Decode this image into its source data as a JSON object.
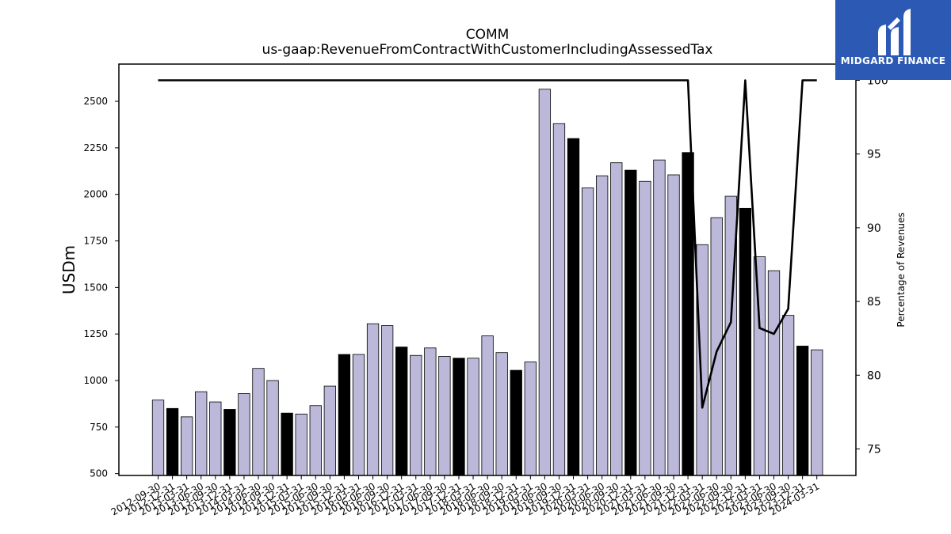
{
  "chart_data": {
    "type": "bar",
    "title": "COMM",
    "subtitle": "us-gaap:RevenueFromContractWithCustomerIncludingAssessedTax",
    "ylabel": "USDm",
    "y2label": "Percentage of Revenues",
    "ylim": [
      490,
      2700
    ],
    "y2lim": [
      73.2,
      101.1
    ],
    "yticks": [
      500,
      750,
      1000,
      1250,
      1500,
      1750,
      2000,
      2250,
      2500
    ],
    "y2ticks": [
      75,
      80,
      85,
      90,
      95,
      100
    ],
    "categories": [
      "2012-09-30",
      "2012-12-31",
      "2013-03-31",
      "2013-06-30",
      "2013-09-30",
      "2013-12-31",
      "2014-03-31",
      "2014-06-30",
      "2014-09-30",
      "2014-12-31",
      "2015-03-31",
      "2015-06-30",
      "2015-09-30",
      "2015-12-31",
      "2016-03-31",
      "2016-06-30",
      "2016-09-30",
      "2016-12-31",
      "2017-03-31",
      "2017-06-30",
      "2017-09-30",
      "2017-12-31",
      "2018-03-31",
      "2018-06-30",
      "2018-09-30",
      "2018-12-31",
      "2019-03-31",
      "2019-06-30",
      "2019-09-30",
      "2019-12-31",
      "2020-03-31",
      "2020-06-30",
      "2020-09-30",
      "2020-12-31",
      "2021-03-31",
      "2021-06-30",
      "2021-09-30",
      "2021-12-31",
      "2022-03-31",
      "2022-06-30",
      "2022-09-30",
      "2022-12-31",
      "2023-03-31",
      "2023-06-30",
      "2023-09-30",
      "2023-12-31",
      "2024-03-31"
    ],
    "series": [
      {
        "type": "bar",
        "values": [
          895,
          850,
          805,
          940,
          885,
          845,
          930,
          1065,
          1000,
          825,
          820,
          865,
          970,
          1140,
          1140,
          1305,
          1295,
          1180,
          1135,
          1175,
          1130,
          1120,
          1120,
          1240,
          1150,
          1055,
          1100,
          2565,
          2380,
          2300,
          2035,
          2100,
          2170,
          2130,
          2070,
          2185,
          2105,
          2225,
          1730,
          1875,
          1990,
          1925,
          1665,
          1590,
          1350,
          1185,
          1165
        ],
        "highlighted": [
          false,
          true,
          false,
          false,
          false,
          true,
          false,
          false,
          false,
          true,
          false,
          false,
          false,
          true,
          false,
          false,
          false,
          true,
          false,
          false,
          false,
          true,
          false,
          false,
          false,
          true,
          false,
          false,
          false,
          true,
          false,
          false,
          false,
          true,
          false,
          false,
          false,
          true,
          false,
          false,
          false,
          true,
          false,
          false,
          false,
          true,
          false
        ]
      },
      {
        "type": "line",
        "axis": "right",
        "values": [
          100,
          100,
          100,
          100,
          100,
          100,
          100,
          100,
          100,
          100,
          100,
          100,
          100,
          100,
          100,
          100,
          100,
          100,
          100,
          100,
          100,
          100,
          100,
          100,
          100,
          100,
          100,
          100,
          100,
          100,
          100,
          100,
          100,
          100,
          100,
          100,
          100,
          100,
          77.8,
          81.6,
          83.6,
          100,
          83.2,
          82.8,
          84.5,
          100,
          100
        ]
      }
    ],
    "colors": {
      "bar": "#bcb8d9",
      "bar_highlight": "#000000",
      "line": "#000000"
    },
    "grid": false
  },
  "logo": {
    "text": "MIDGARD FINANCE",
    "background": "#2b59b3"
  }
}
